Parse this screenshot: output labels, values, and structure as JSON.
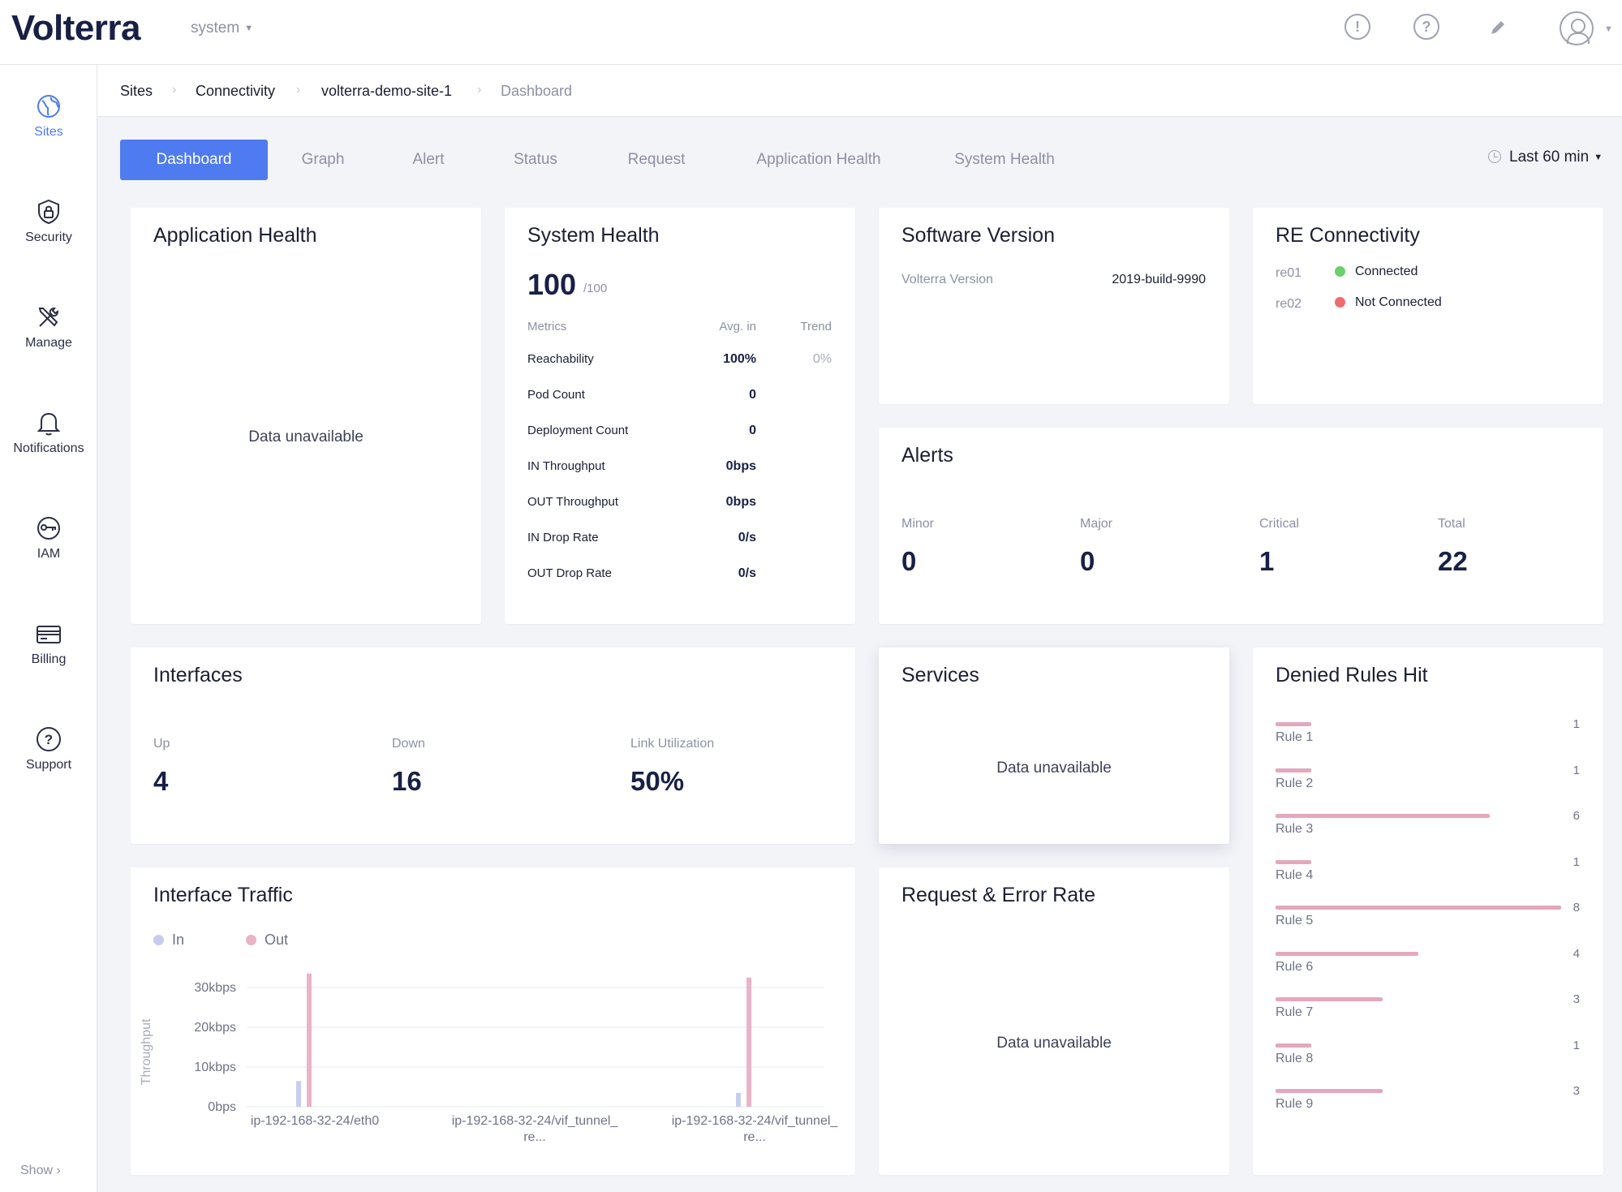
{
  "header": {
    "brand": "Volterra",
    "namespace": "system"
  },
  "sidebar": {
    "items": [
      {
        "label": "Sites",
        "icon": "globe-icon",
        "active": true
      },
      {
        "label": "Security",
        "icon": "shield-icon"
      },
      {
        "label": "Manage",
        "icon": "tools-icon"
      },
      {
        "label": "Notifications",
        "icon": "bell-icon"
      },
      {
        "label": "IAM",
        "icon": "key-icon"
      },
      {
        "label": "Billing",
        "icon": "credit-card-icon"
      },
      {
        "label": "Support",
        "icon": "help-icon"
      }
    ],
    "show_label": "Show"
  },
  "breadcrumb": [
    "Sites",
    "Connectivity",
    "volterra-demo-site-1",
    "Dashboard"
  ],
  "tabs": [
    "Dashboard",
    "Graph",
    "Alert",
    "Status",
    "Request",
    "Application Health",
    "System Health"
  ],
  "active_tab": "Dashboard",
  "time_range": "Last 60 min",
  "app_health": {
    "title": "Application Health",
    "empty": "Data unavailable"
  },
  "system_health": {
    "title": "System Health",
    "score": "100",
    "max": "/100",
    "columns": [
      "Metrics",
      "Avg. in",
      "Trend"
    ],
    "rows": [
      {
        "metric": "Reachability",
        "value": "100%",
        "trend": "0%"
      },
      {
        "metric": "Pod Count",
        "value": "0",
        "trend": ""
      },
      {
        "metric": "Deployment Count",
        "value": "0",
        "trend": ""
      },
      {
        "metric": "IN Throughput",
        "value": "0bps",
        "trend": ""
      },
      {
        "metric": "OUT Throughput",
        "value": "0bps",
        "trend": ""
      },
      {
        "metric": "IN Drop Rate",
        "value": "0/s",
        "trend": ""
      },
      {
        "metric": "OUT Drop Rate",
        "value": "0/s",
        "trend": ""
      }
    ]
  },
  "software_version": {
    "title": "Software Version",
    "label": "Volterra Version",
    "value": "2019-build-9990"
  },
  "re_connectivity": {
    "title": "RE Connectivity",
    "items": [
      {
        "name": "re01",
        "status": "Connected",
        "color": "#6ccf6a"
      },
      {
        "name": "re02",
        "status": "Not Connected",
        "color": "#ef6b6b"
      }
    ]
  },
  "alerts": {
    "title": "Alerts",
    "stats": [
      {
        "label": "Minor",
        "value": "0"
      },
      {
        "label": "Major",
        "value": "0"
      },
      {
        "label": "Critical",
        "value": "1"
      },
      {
        "label": "Total",
        "value": "22"
      }
    ]
  },
  "interfaces": {
    "title": "Interfaces",
    "stats": [
      {
        "label": "Up",
        "value": "4"
      },
      {
        "label": "Down",
        "value": "16"
      },
      {
        "label": "Link Utilization",
        "value": "50%"
      }
    ]
  },
  "services": {
    "title": "Services",
    "empty": "Data unavailable"
  },
  "denied_rules": {
    "title": "Denied Rules Hit",
    "bar_color": "#e4a8bc",
    "max": 8,
    "rules": [
      {
        "name": "Rule 1",
        "value": 1
      },
      {
        "name": "Rule 2",
        "value": 1
      },
      {
        "name": "Rule 3",
        "value": 6
      },
      {
        "name": "Rule 4",
        "value": 1
      },
      {
        "name": "Rule 5",
        "value": 8
      },
      {
        "name": "Rule 6",
        "value": 4
      },
      {
        "name": "Rule 7",
        "value": 3
      },
      {
        "name": "Rule 8",
        "value": 1
      },
      {
        "name": "Rule 9",
        "value": 3
      }
    ]
  },
  "request_error": {
    "title": "Request & Error Rate",
    "empty": "Data unavailable"
  },
  "chart_data": {
    "type": "bar",
    "title": "Interface Traffic",
    "ylabel": "Throughput",
    "xlabel": "",
    "ylim": [
      0,
      30000
    ],
    "yticks": [
      0,
      10000,
      20000,
      30000
    ],
    "ytick_labels": [
      "0bps",
      "10kbps",
      "20kbps",
      "30kbps"
    ],
    "grid": true,
    "legend": "top-left",
    "categories": [
      "ip-192-168-32-24/eth0",
      "ip-192-168-32-24/vif_tunnel_re...",
      "ip-192-168-32-24/vif_tunnel_re..."
    ],
    "category_lines": [
      [
        "ip-192-168-32-24/eth0"
      ],
      [
        "ip-192-168-32-24/vif_tunnel_",
        "re..."
      ],
      [
        "ip-192-168-32-24/vif_tunnel_",
        "re..."
      ]
    ],
    "series": [
      {
        "name": "In",
        "color": "#c8cdf0",
        "values": [
          6500,
          0,
          3500
        ]
      },
      {
        "name": "Out",
        "color": "#eab3c7",
        "values": [
          33500,
          0,
          32500
        ]
      }
    ]
  }
}
